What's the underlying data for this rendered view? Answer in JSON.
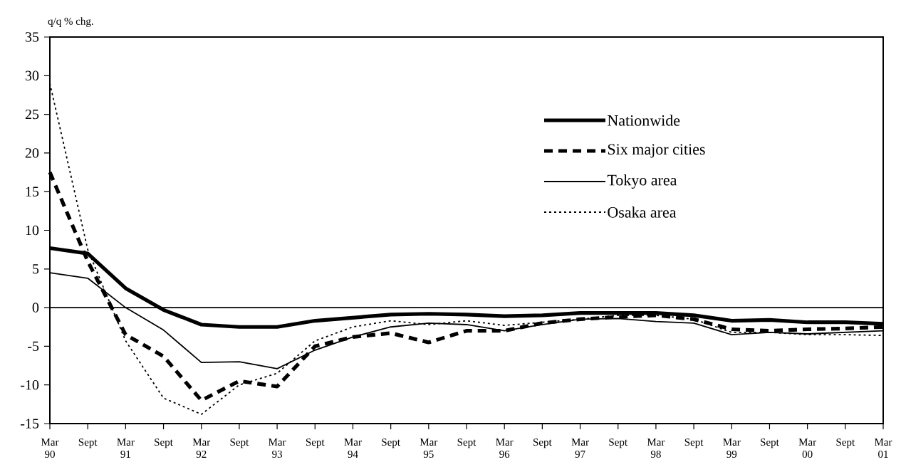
{
  "chart_data": {
    "type": "line",
    "ylabel": "q/q % chg.",
    "categories": [
      "Mar 90",
      "Sept",
      "Mar 91",
      "Sept",
      "Mar 92",
      "Sept",
      "Mar 93",
      "Sept",
      "Mar 94",
      "Sept",
      "Mar 95",
      "Sept",
      "Mar 96",
      "Sept",
      "Mar 97",
      "Sept",
      "Mar 98",
      "Sept",
      "Mar 99",
      "Sept",
      "Mar 00",
      "Sept",
      "Mar 01"
    ],
    "series": [
      {
        "name": "Nationwide",
        "color": "#000000",
        "line_style": "solid",
        "values": [
          7.7,
          7.0,
          2.5,
          -0.3,
          -2.2,
          -2.5,
          -2.5,
          -1.7,
          -1.3,
          -0.9,
          -0.8,
          -0.9,
          -1.1,
          -1.0,
          -0.7,
          -0.7,
          -0.7,
          -1.0,
          -1.7,
          -1.6,
          -1.9,
          -1.9,
          -2.1
        ]
      },
      {
        "name": "Six major cities",
        "color": "#000000",
        "line_style": "dashed",
        "values": [
          17.5,
          6.0,
          -3.5,
          -6.3,
          -12.0,
          -9.5,
          -10.2,
          -5.0,
          -3.8,
          -3.3,
          -4.5,
          -3.0,
          -3.0,
          -2.0,
          -1.5,
          -1.2,
          -1.0,
          -1.5,
          -2.8,
          -3.0,
          -2.8,
          -2.7,
          -2.5
        ]
      },
      {
        "name": "Tokyo area",
        "color": "#000000",
        "line_style": "solid",
        "values": [
          4.5,
          3.8,
          0.0,
          -2.9,
          -7.1,
          -7.0,
          -7.9,
          -5.5,
          -3.8,
          -2.5,
          -2.0,
          -2.2,
          -3.0,
          -2.2,
          -1.5,
          -1.4,
          -1.8,
          -2.0,
          -3.5,
          -3.2,
          -3.4,
          -3.2,
          -3.0
        ]
      },
      {
        "name": "Osaka area",
        "color": "#000000",
        "line_style": "dotted",
        "values": [
          29.0,
          7.5,
          -4.3,
          -11.7,
          -13.8,
          -10.0,
          -8.5,
          -4.3,
          -2.5,
          -1.7,
          -2.2,
          -1.7,
          -2.3,
          -1.9,
          -1.5,
          -1.0,
          -1.0,
          -1.5,
          -3.2,
          -3.2,
          -3.5,
          -3.5,
          -3.6
        ]
      }
    ],
    "ylim": [
      -15,
      35
    ],
    "yticks": [
      -15,
      -10,
      -5,
      0,
      5,
      10,
      15,
      20,
      25,
      30,
      35
    ],
    "ref_lines": [
      {
        "axis": "y",
        "value": 0,
        "color": "#000000"
      }
    ],
    "grid": false,
    "legend": "top right",
    "marker": "none"
  }
}
